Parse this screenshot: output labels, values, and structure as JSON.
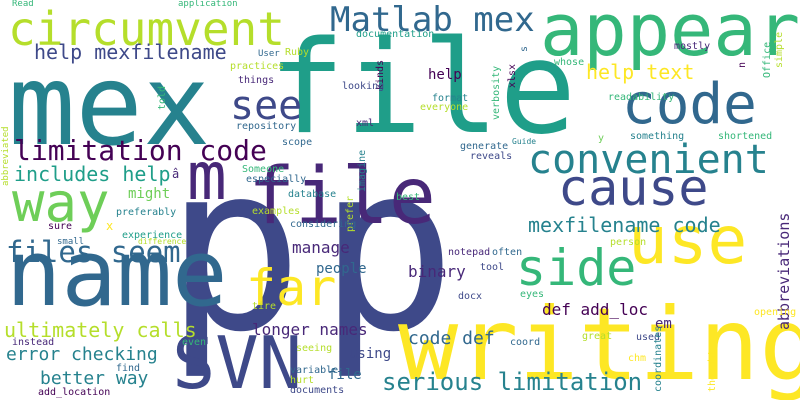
{
  "colors": {
    "background": "#ffffff",
    "palette": [
      "#440154",
      "#482878",
      "#3e4989",
      "#31688e",
      "#26828e",
      "#1f9e89",
      "#35b779",
      "#6ece58",
      "#b5de2b",
      "#fde725"
    ]
  },
  "words": [
    "p",
    "p",
    "file",
    "mex",
    "writing",
    "name",
    "SVN",
    "appear",
    "code",
    "use",
    "cause",
    "circumvent",
    "way",
    "far",
    "side",
    "m",
    "file",
    "Matlab mex",
    "convenient",
    "see",
    "files seem",
    "limitation code",
    "help mexfilename",
    "help text",
    "includes help",
    "mexfilename code",
    "serious limitation",
    "ultimately calls",
    "error checking",
    "better way",
    "code def",
    "def add_loc",
    "longer names",
    "binary",
    "manage",
    "people",
    "might",
    "help",
    "using",
    "file",
    "abbreviations",
    "em",
    "Read",
    "application",
    "documentation",
    "kinds",
    "s",
    "n",
    "mostly",
    "simple",
    "Office",
    "User",
    "Ruby",
    "practices",
    "things",
    "told",
    "looking",
    "whose",
    "xlsx",
    "verbosity",
    "format",
    "everyone",
    "readability",
    "repository",
    "xml",
    "scope",
    "something",
    "shortened",
    "Guide",
    "y",
    "generate",
    "reveals",
    "imagine",
    "Someone",
    "especially",
    "database",
    "examples",
    "preferably",
    "prefer",
    "best",
    "considering",
    "sure",
    "x",
    "experience",
    "difference",
    "small",
    "abbreviated",
    "notepad",
    "often",
    "tool",
    "person",
    "docx",
    "eyes",
    "great",
    "used",
    "opening",
    "tire",
    "instead",
    "even",
    "seeing",
    "find",
    "hurt",
    "variable",
    "documents",
    "add_location",
    "coord",
    "coordinates",
    "thought",
    "chm",
    "â"
  ]
}
